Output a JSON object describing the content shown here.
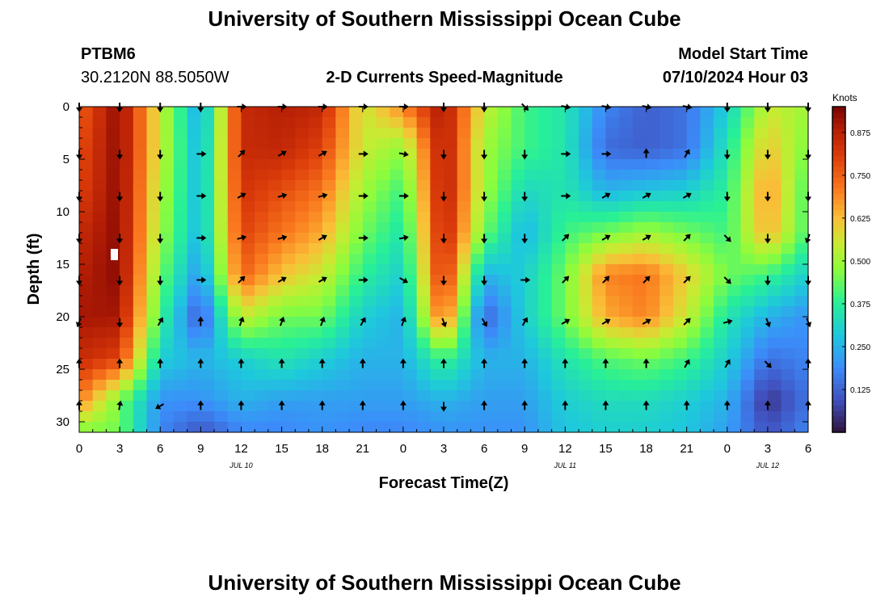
{
  "page": {
    "title": "University of Southern Mississippi Ocean Cube",
    "station_id": "PTBM6",
    "station_coords": "30.2120N  88.5050W",
    "subtitle": "2-D Currents Speed-Magnitude",
    "model_start_label": "Model Start Time",
    "model_start_value": "07/10/2024 Hour 03",
    "footer_title": "University of Southern Mississippi Ocean Cube"
  },
  "chart_data": {
    "type": "heatmap",
    "title": "2-D Currents Speed-Magnitude",
    "xlabel": "Forecast Time(Z)",
    "ylabel": "Depth (ft)",
    "x_ticks": [
      {
        "hours": 0,
        "label": "0"
      },
      {
        "hours": 3,
        "label": "3"
      },
      {
        "hours": 6,
        "label": "6"
      },
      {
        "hours": 9,
        "label": "9"
      },
      {
        "hours": 12,
        "label": "12"
      },
      {
        "hours": 15,
        "label": "15"
      },
      {
        "hours": 18,
        "label": "18"
      },
      {
        "hours": 21,
        "label": "21"
      },
      {
        "hours": 24,
        "label": "0"
      },
      {
        "hours": 27,
        "label": "3"
      },
      {
        "hours": 30,
        "label": "6"
      },
      {
        "hours": 33,
        "label": "9"
      },
      {
        "hours": 36,
        "label": "12"
      },
      {
        "hours": 39,
        "label": "15"
      },
      {
        "hours": 42,
        "label": "18"
      },
      {
        "hours": 45,
        "label": "21"
      },
      {
        "hours": 48,
        "label": "0"
      },
      {
        "hours": 51,
        "label": "3"
      },
      {
        "hours": 54,
        "label": "6"
      }
    ],
    "x_range_hours": [
      0,
      54
    ],
    "date_labels": [
      {
        "hours": 12,
        "label": "JUL 10"
      },
      {
        "hours": 36,
        "label": "JUL 11"
      },
      {
        "hours": 51,
        "label": "JUL 12"
      }
    ],
    "y_ticks": [
      0,
      5,
      10,
      15,
      20,
      25,
      30
    ],
    "y_range_ft": [
      0,
      31
    ],
    "colorbar": {
      "label": "Knots",
      "range": [
        0,
        0.95
      ],
      "ticks": [
        0.875,
        0.75,
        0.625,
        0.5,
        0.375,
        0.25,
        0.125
      ],
      "tick_labels": [
        "0.875",
        "0.750",
        "0.625",
        "0.500",
        "0.375",
        "0.250",
        "0.125"
      ]
    },
    "grid_hours": [
      0,
      3,
      6,
      9,
      12,
      15,
      18,
      21,
      24,
      27,
      30,
      33,
      36,
      39,
      42,
      45,
      48,
      51,
      54
    ],
    "grid_depths_ft": [
      0,
      4,
      8,
      12,
      16,
      20,
      24,
      28,
      31
    ],
    "speed_knots": [
      [
        0.75,
        0.93,
        0.55,
        0.22,
        0.85,
        0.88,
        0.86,
        0.55,
        0.7,
        0.9,
        0.55,
        0.4,
        0.35,
        0.18,
        0.12,
        0.15,
        0.3,
        0.55,
        0.5
      ],
      [
        0.78,
        0.93,
        0.55,
        0.24,
        0.85,
        0.86,
        0.8,
        0.55,
        0.48,
        0.9,
        0.5,
        0.4,
        0.35,
        0.14,
        0.12,
        0.15,
        0.35,
        0.62,
        0.45
      ],
      [
        0.8,
        0.93,
        0.52,
        0.25,
        0.83,
        0.78,
        0.72,
        0.5,
        0.4,
        0.9,
        0.5,
        0.32,
        0.35,
        0.25,
        0.28,
        0.3,
        0.38,
        0.68,
        0.4
      ],
      [
        0.85,
        0.93,
        0.5,
        0.25,
        0.8,
        0.72,
        0.65,
        0.45,
        0.35,
        0.88,
        0.45,
        0.25,
        0.4,
        0.45,
        0.5,
        0.45,
        0.4,
        0.65,
        0.4
      ],
      [
        0.88,
        0.93,
        0.45,
        0.2,
        0.75,
        0.62,
        0.55,
        0.38,
        0.3,
        0.85,
        0.25,
        0.3,
        0.45,
        0.7,
        0.72,
        0.6,
        0.45,
        0.4,
        0.3
      ],
      [
        0.9,
        0.9,
        0.4,
        0.1,
        0.55,
        0.45,
        0.45,
        0.3,
        0.25,
        0.75,
        0.12,
        0.3,
        0.45,
        0.65,
        0.7,
        0.55,
        0.35,
        0.25,
        0.2
      ],
      [
        0.85,
        0.8,
        0.3,
        0.25,
        0.3,
        0.35,
        0.3,
        0.25,
        0.25,
        0.4,
        0.25,
        0.25,
        0.35,
        0.42,
        0.45,
        0.4,
        0.3,
        0.15,
        0.18
      ],
      [
        0.7,
        0.45,
        0.2,
        0.2,
        0.25,
        0.22,
        0.22,
        0.22,
        0.22,
        0.25,
        0.22,
        0.22,
        0.3,
        0.33,
        0.33,
        0.3,
        0.25,
        0.05,
        0.15
      ],
      [
        0.45,
        0.45,
        0.18,
        0.1,
        0.18,
        0.18,
        0.2,
        0.18,
        0.18,
        0.2,
        0.2,
        0.2,
        0.28,
        0.3,
        0.3,
        0.28,
        0.22,
        0.1,
        0.18
      ]
    ],
    "vector_hours": [
      0,
      3,
      6,
      9,
      12,
      15,
      18,
      21,
      24,
      27,
      30,
      33,
      36,
      39,
      42,
      45,
      48,
      51,
      54
    ],
    "vector_depths_ft": [
      0,
      4.5,
      8.5,
      12.5,
      16.5,
      20.5,
      24.5,
      28.5
    ],
    "vector_direction_deg": [
      [
        180,
        180,
        180,
        180,
        90,
        90,
        90,
        90,
        90,
        180,
        180,
        135,
        100,
        100,
        100,
        100,
        180,
        180,
        180
      ],
      [
        180,
        180,
        180,
        90,
        45,
        60,
        60,
        90,
        100,
        180,
        180,
        180,
        90,
        90,
        0,
        30,
        180,
        180,
        180
      ],
      [
        180,
        180,
        180,
        90,
        60,
        75,
        75,
        90,
        90,
        180,
        180,
        180,
        90,
        60,
        60,
        60,
        180,
        180,
        180
      ],
      [
        180,
        180,
        180,
        90,
        75,
        75,
        60,
        90,
        80,
        180,
        180,
        180,
        45,
        60,
        60,
        45,
        135,
        180,
        200
      ],
      [
        180,
        180,
        180,
        90,
        45,
        60,
        60,
        90,
        120,
        180,
        180,
        90,
        45,
        45,
        45,
        45,
        135,
        180,
        180
      ],
      [
        200,
        180,
        30,
        0,
        20,
        20,
        20,
        30,
        20,
        160,
        150,
        30,
        60,
        60,
        60,
        45,
        75,
        160,
        160
      ],
      [
        0,
        0,
        0,
        0,
        0,
        0,
        0,
        0,
        0,
        0,
        0,
        0,
        0,
        0,
        0,
        30,
        30,
        135,
        0
      ],
      [
        0,
        10,
        240,
        0,
        0,
        0,
        0,
        0,
        0,
        180,
        0,
        0,
        0,
        0,
        0,
        0,
        0,
        0,
        0
      ]
    ]
  }
}
